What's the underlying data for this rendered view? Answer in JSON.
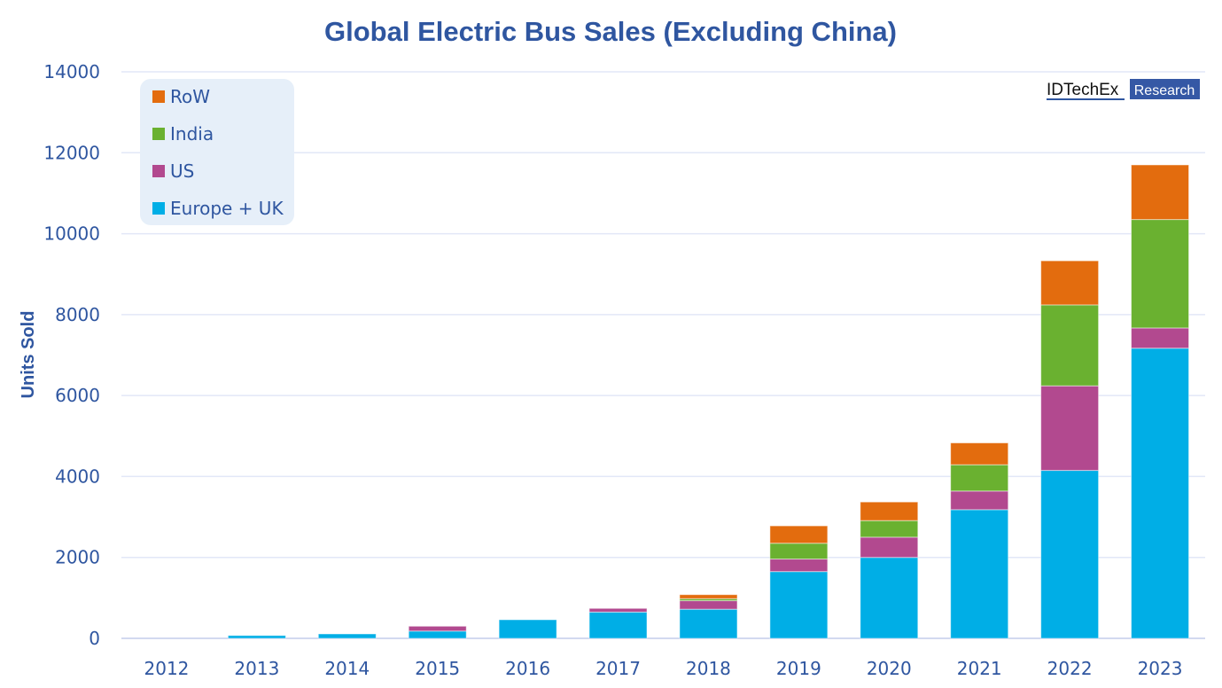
{
  "brand": {
    "name": "IDTechEx",
    "tag": "Research",
    "tag_color": "#3558a5"
  },
  "chart_data": {
    "type": "bar",
    "stacked": true,
    "title": "Global Electric Bus Sales (Excluding China)",
    "xlabel": "",
    "ylabel": "Units Sold",
    "ylim": [
      0,
      14000
    ],
    "yticks": [
      0,
      2000,
      4000,
      6000,
      8000,
      10000,
      12000,
      14000
    ],
    "grid": true,
    "legend_position": "top-left",
    "categories": [
      "2012",
      "2013",
      "2014",
      "2015",
      "2016",
      "2017",
      "2018",
      "2019",
      "2020",
      "2021",
      "2022",
      "2023"
    ],
    "series": [
      {
        "name": "Europe + UK",
        "color": "#00aee6",
        "values": [
          0,
          70,
          110,
          180,
          460,
          650,
          720,
          1650,
          2000,
          3180,
          4150,
          7170
        ]
      },
      {
        "name": "US",
        "color": "#b2498f",
        "values": [
          0,
          0,
          0,
          120,
          0,
          90,
          210,
          310,
          500,
          460,
          2090,
          500
        ]
      },
      {
        "name": "India",
        "color": "#6ab130",
        "values": [
          0,
          0,
          0,
          0,
          0,
          0,
          50,
          390,
          410,
          650,
          2000,
          2680
        ]
      },
      {
        "name": "RoW",
        "color": "#e36c0e",
        "values": [
          0,
          0,
          0,
          0,
          0,
          0,
          100,
          430,
          460,
          540,
          1090,
          1350
        ]
      }
    ],
    "legend_order": [
      "RoW",
      "India",
      "US",
      "Europe + UK"
    ]
  }
}
